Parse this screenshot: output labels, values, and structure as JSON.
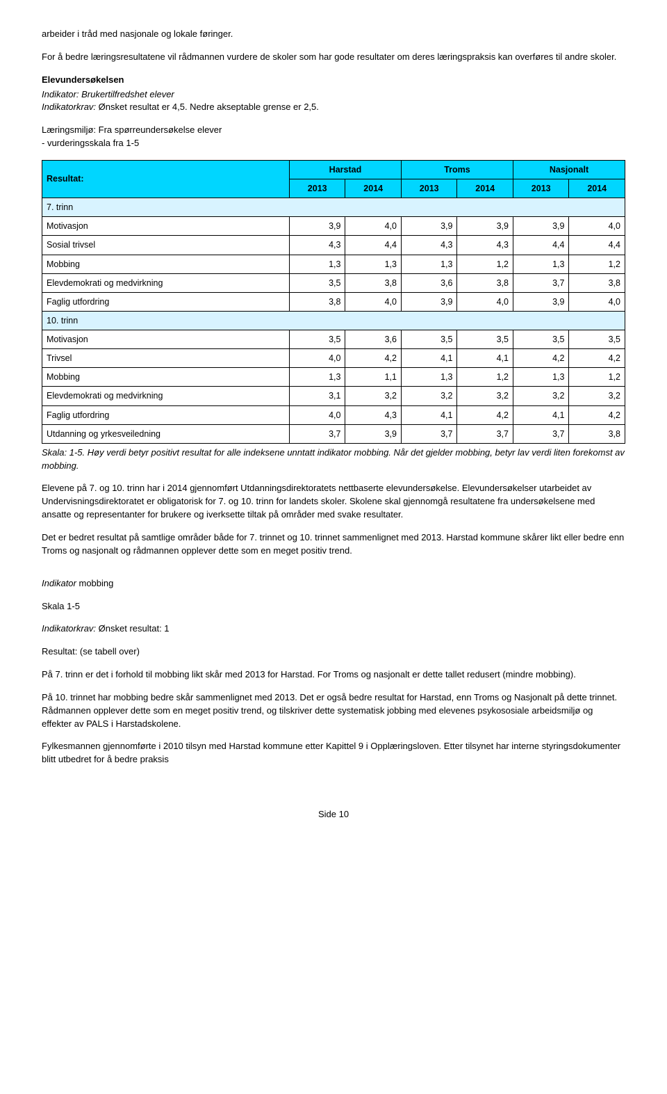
{
  "intro": {
    "p1": "arbeider i tråd med nasjonale og lokale føringer.",
    "p2": "For å bedre læringsresultatene vil rådmannen vurdere de skoler som har gode resultater om deres læringspraksis kan overføres til andre skoler."
  },
  "elev": {
    "heading": "Elevundersøkelsen",
    "ind1": "Indikator: Brukertilfredshet elever",
    "ind2a": "Indikatorkrav:",
    "ind2b": " Ønsket resultat er 4,5. Nedre akseptable grense er 2,5.",
    "miljo": "Læringsmiljø: Fra spørreundersøkelse elever\n- vurderingsskala fra 1-5"
  },
  "table": {
    "col_resultat": "Resultat:",
    "g_harstad": "Harstad",
    "g_troms": "Troms",
    "g_nasjonalt": "Nasjonalt",
    "y2013": "2013",
    "y2014": "2014",
    "r7": "7. trinn",
    "rows7": [
      {
        "l": "Motivasjon",
        "v": [
          "3,9",
          "4,0",
          "3,9",
          "3,9",
          "3,9",
          "4,0"
        ]
      },
      {
        "l": "Sosial trivsel",
        "v": [
          "4,3",
          "4,4",
          "4,3",
          "4,3",
          "4,4",
          "4,4"
        ]
      },
      {
        "l": "Mobbing",
        "v": [
          "1,3",
          "1,3",
          "1,3",
          "1,2",
          "1,3",
          "1,2"
        ]
      },
      {
        "l": "Elevdemokrati og medvirkning",
        "v": [
          "3,5",
          "3,8",
          "3,6",
          "3,8",
          "3,7",
          "3,8"
        ]
      },
      {
        "l": "Faglig utfordring",
        "v": [
          "3,8",
          "4,0",
          "3,9",
          "4,0",
          "3,9",
          "4,0"
        ]
      }
    ],
    "r10": "10. trinn",
    "rows10": [
      {
        "l": "Motivasjon",
        "v": [
          "3,5",
          "3,6",
          "3,5",
          "3,5",
          "3,5",
          "3,5"
        ]
      },
      {
        "l": "Trivsel",
        "v": [
          "4,0",
          "4,2",
          "4,1",
          "4,1",
          "4,2",
          "4,2"
        ]
      },
      {
        "l": "Mobbing",
        "v": [
          "1,3",
          "1,1",
          "1,3",
          "1,2",
          "1,3",
          "1,2"
        ]
      },
      {
        "l": "Elevdemokrati og medvirkning",
        "v": [
          "3,1",
          "3,2",
          "3,2",
          "3,2",
          "3,2",
          "3,2"
        ]
      },
      {
        "l": "Faglig utfordring",
        "v": [
          "4,0",
          "4,3",
          "4,1",
          "4,2",
          "4,1",
          "4,2"
        ]
      },
      {
        "l": "Utdanning og yrkesveiledning",
        "v": [
          "3,7",
          "3,9",
          "3,7",
          "3,7",
          "3,7",
          "3,8"
        ]
      }
    ],
    "caption": "Skala: 1-5. Høy verdi betyr positivt resultat for alle indeksene unntatt indikator mobbing. Når det gjelder mobbing, betyr lav verdi liten forekomst av mobbing.",
    "colors": {
      "header_bg": "#00d6ff",
      "group_bg": "#d8f3ff",
      "border": "#000000"
    }
  },
  "after": {
    "p1": "Elevene på 7. og 10. trinn har i 2014 gjennomført Utdanningsdirektoratets nettbaserte elevundersøkelse. Elevundersøkelser utarbeidet av Undervisningsdirektoratet er obligatorisk for 7. og 10. trinn for landets skoler. Skolene skal gjennomgå resultatene fra undersøkelsene med ansatte og representanter for brukere og iverksette tiltak på områder med svake resultater.",
    "p2": "Det er bedret resultat på samtlige områder både for 7. trinnet og 10. trinnet sammenlignet med 2013. Harstad kommune skårer likt eller bedre enn Troms og nasjonalt og rådmannen opplever dette som en meget positiv trend."
  },
  "mobbing": {
    "h": "Indikator",
    "hn": " mobbing",
    "skala": "Skala 1-5",
    "ik": "Indikatorkrav:",
    "ikv": " Ønsket resultat: 1",
    "res": "Resultat: (se tabell over)",
    "p1": "På 7. trinn er det i forhold til mobbing likt skår med 2013 for Harstad. For Troms og nasjonalt er dette tallet redusert (mindre mobbing).",
    "p2": "På 10. trinnet har mobbing bedre skår sammenlignet med 2013. Det er også bedre resultat for Harstad, enn Troms og Nasjonalt på dette trinnet. Rådmannen opplever dette som en meget positiv trend, og tilskriver dette systematisk jobbing med elevenes psykososiale arbeidsmiljø og effekter av PALS i Harstadskolene.",
    "p3": "Fylkesmannen gjennomførte i 2010 tilsyn med Harstad kommune etter Kapittel 9 i Opplæringsloven. Etter tilsynet har interne styringsdokumenter blitt utbedret for å bedre praksis"
  },
  "footer": "Side 10"
}
